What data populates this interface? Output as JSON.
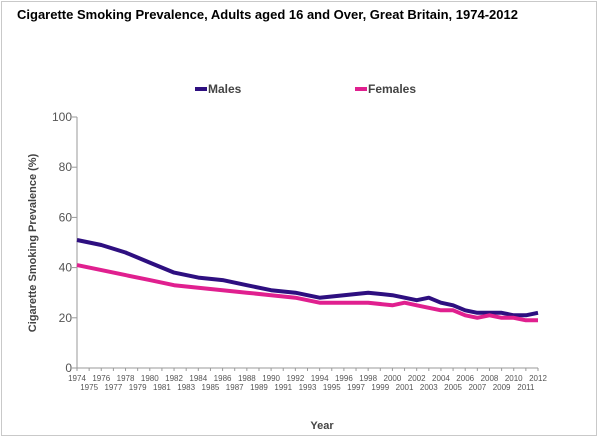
{
  "chart_title": "Cigarette Smoking Prevalence, Adults aged 16 and Over, Great Britain, 1974-2012",
  "colors": {
    "males": "#2e0f80",
    "females": "#e0208f",
    "axis": "#9a9a9a",
    "tick_text": "#555555"
  },
  "chart_data": {
    "type": "line",
    "title": "Cigarette Smoking Prevalence, Adults aged 16 and Over, Great Britain, 1974-2012",
    "xlabel": "Year",
    "ylabel": "Cigarette Smoking Prevalence (%)",
    "ylim": [
      0,
      100
    ],
    "xlim": [
      1974,
      2012
    ],
    "yticks": [
      0,
      20,
      40,
      60,
      80,
      100
    ],
    "xticks_top": [
      "1974",
      "1976",
      "1978",
      "1980",
      "1982",
      "1984",
      "1986",
      "1988",
      "1990",
      "1992",
      "1994",
      "1996",
      "1998",
      "2000",
      "2002",
      "2004",
      "2006",
      "2008",
      "2010",
      "2012"
    ],
    "xticks_bottom": [
      "1975",
      "1977",
      "1979",
      "1981",
      "1983",
      "1985",
      "1987",
      "1989",
      "1991",
      "1993",
      "1995",
      "1997",
      "1999",
      "2001",
      "2003",
      "2005",
      "2007",
      "2009",
      "2011"
    ],
    "grid": false,
    "legend_position": "top",
    "series": [
      {
        "name": "Males",
        "color": "#2e0f80",
        "points": [
          [
            1974,
            51
          ],
          [
            1976,
            49
          ],
          [
            1978,
            46
          ],
          [
            1980,
            42
          ],
          [
            1982,
            38
          ],
          [
            1984,
            36
          ],
          [
            1986,
            35
          ],
          [
            1988,
            33
          ],
          [
            1990,
            31
          ],
          [
            1992,
            30
          ],
          [
            1994,
            28
          ],
          [
            1995,
            28.5
          ],
          [
            1996,
            29
          ],
          [
            1997,
            29.5
          ],
          [
            1998,
            30
          ],
          [
            2000,
            29
          ],
          [
            2001,
            28
          ],
          [
            2002,
            27
          ],
          [
            2003,
            28
          ],
          [
            2004,
            26
          ],
          [
            2005,
            25
          ],
          [
            2006,
            23
          ],
          [
            2007,
            22
          ],
          [
            2008,
            22
          ],
          [
            2009,
            22
          ],
          [
            2010,
            21
          ],
          [
            2011,
            21
          ],
          [
            2012,
            22
          ]
        ]
      },
      {
        "name": "Females",
        "color": "#e0208f",
        "points": [
          [
            1974,
            41
          ],
          [
            1976,
            39
          ],
          [
            1978,
            37
          ],
          [
            1980,
            35
          ],
          [
            1982,
            33
          ],
          [
            1984,
            32
          ],
          [
            1986,
            31
          ],
          [
            1988,
            30
          ],
          [
            1990,
            29
          ],
          [
            1992,
            28
          ],
          [
            1994,
            26
          ],
          [
            1996,
            26
          ],
          [
            1998,
            26
          ],
          [
            2000,
            25
          ],
          [
            2001,
            26
          ],
          [
            2002,
            25
          ],
          [
            2003,
            24
          ],
          [
            2004,
            23
          ],
          [
            2005,
            23
          ],
          [
            2006,
            21
          ],
          [
            2007,
            20
          ],
          [
            2008,
            21
          ],
          [
            2009,
            20
          ],
          [
            2010,
            20
          ],
          [
            2011,
            19
          ],
          [
            2012,
            19
          ]
        ]
      }
    ]
  }
}
